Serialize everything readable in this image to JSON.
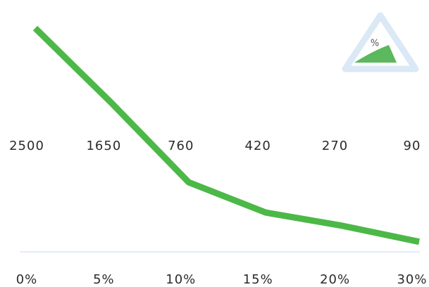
{
  "chart_data": {
    "type": "line",
    "categories": [
      "0%",
      "5%",
      "10%",
      "15%",
      "20%",
      "30%"
    ],
    "values": [
      2500,
      1650,
      760,
      420,
      270,
      90
    ],
    "color": "#4cb847",
    "ylim": [
      0,
      2500
    ],
    "annotations": [
      "%"
    ]
  }
}
